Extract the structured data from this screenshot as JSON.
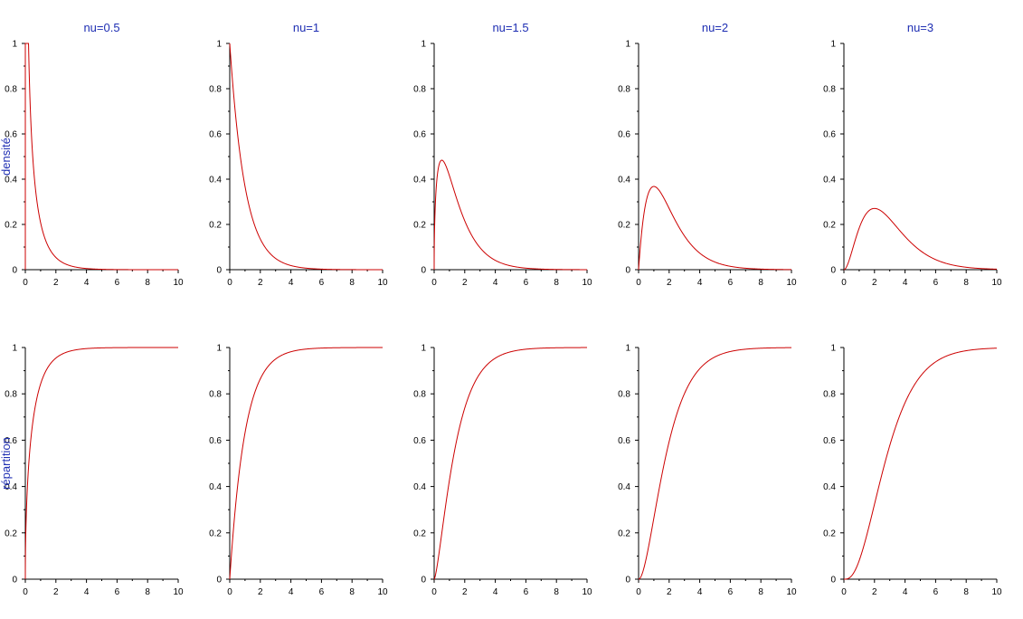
{
  "row_labels": [
    "densité",
    "répartition"
  ],
  "colors": {
    "curve": "#cc0000",
    "title": "#1f2fb3",
    "axis": "#000000"
  },
  "chart_data": [
    {
      "type": "line",
      "kind": "pdf",
      "title": "nu=0.5",
      "nu": 0.5,
      "ylabel": "densité",
      "xlim": [
        0,
        10
      ],
      "ylim": [
        0,
        1
      ],
      "xticks": [
        "0",
        "2",
        "4",
        "6",
        "8",
        "10"
      ],
      "yticks": [
        "0",
        "0.2",
        "0.4",
        "0.6",
        "0.8",
        "1"
      ]
    },
    {
      "type": "line",
      "kind": "pdf",
      "title": "nu=1",
      "nu": 1,
      "ylabel": "",
      "xlim": [
        0,
        10
      ],
      "ylim": [
        0,
        1
      ],
      "xticks": [
        "0",
        "2",
        "4",
        "6",
        "8",
        "10"
      ],
      "yticks": [
        "0",
        "0.2",
        "0.4",
        "0.6",
        "0.8",
        "1"
      ]
    },
    {
      "type": "line",
      "kind": "pdf",
      "title": "nu=1.5",
      "nu": 1.5,
      "ylabel": "",
      "xlim": [
        0,
        10
      ],
      "ylim": [
        0,
        1
      ],
      "xticks": [
        "0",
        "2",
        "4",
        "6",
        "8",
        "10"
      ],
      "yticks": [
        "0",
        "0.2",
        "0.4",
        "0.6",
        "0.8",
        "1"
      ]
    },
    {
      "type": "line",
      "kind": "pdf",
      "title": "nu=2",
      "nu": 2,
      "ylabel": "",
      "xlim": [
        0,
        10
      ],
      "ylim": [
        0,
        1
      ],
      "xticks": [
        "0",
        "2",
        "4",
        "6",
        "8",
        "10"
      ],
      "yticks": [
        "0",
        "0.2",
        "0.4",
        "0.6",
        "0.8",
        "1"
      ]
    },
    {
      "type": "line",
      "kind": "pdf",
      "title": "nu=3",
      "nu": 3,
      "ylabel": "",
      "xlim": [
        0,
        10
      ],
      "ylim": [
        0,
        1
      ],
      "xticks": [
        "0",
        "2",
        "4",
        "6",
        "8",
        "10"
      ],
      "yticks": [
        "0",
        "0.2",
        "0.4",
        "0.6",
        "0.8",
        "1"
      ]
    },
    {
      "type": "line",
      "kind": "cdf",
      "title": "",
      "nu": 0.5,
      "ylabel": "répartition",
      "xlim": [
        0,
        10
      ],
      "ylim": [
        0,
        1
      ],
      "xticks": [
        "0",
        "2",
        "4",
        "6",
        "8",
        "10"
      ],
      "yticks": [
        "0",
        "0.2",
        "0.4",
        "0.6",
        "0.8",
        "1"
      ]
    },
    {
      "type": "line",
      "kind": "cdf",
      "title": "",
      "nu": 1,
      "ylabel": "",
      "xlim": [
        0,
        10
      ],
      "ylim": [
        0,
        1
      ],
      "xticks": [
        "0",
        "2",
        "4",
        "6",
        "8",
        "10"
      ],
      "yticks": [
        "0",
        "0.2",
        "0.4",
        "0.6",
        "0.8",
        "1"
      ]
    },
    {
      "type": "line",
      "kind": "cdf",
      "title": "",
      "nu": 1.5,
      "ylabel": "",
      "xlim": [
        0,
        10
      ],
      "ylim": [
        0,
        1
      ],
      "xticks": [
        "0",
        "2",
        "4",
        "6",
        "8",
        "10"
      ],
      "yticks": [
        "0",
        "0.2",
        "0.4",
        "0.6",
        "0.8",
        "1"
      ]
    },
    {
      "type": "line",
      "kind": "cdf",
      "title": "",
      "nu": 2,
      "ylabel": "",
      "xlim": [
        0,
        10
      ],
      "ylim": [
        0,
        1
      ],
      "xticks": [
        "0",
        "2",
        "4",
        "6",
        "8",
        "10"
      ],
      "yticks": [
        "0",
        "0.2",
        "0.4",
        "0.6",
        "0.8",
        "1"
      ]
    },
    {
      "type": "line",
      "kind": "cdf",
      "title": "",
      "nu": 3,
      "ylabel": "",
      "xlim": [
        0,
        10
      ],
      "ylim": [
        0,
        1
      ],
      "xticks": [
        "0",
        "2",
        "4",
        "6",
        "8",
        "10"
      ],
      "yticks": [
        "0",
        "0.2",
        "0.4",
        "0.6",
        "0.8",
        "1"
      ]
    }
  ]
}
